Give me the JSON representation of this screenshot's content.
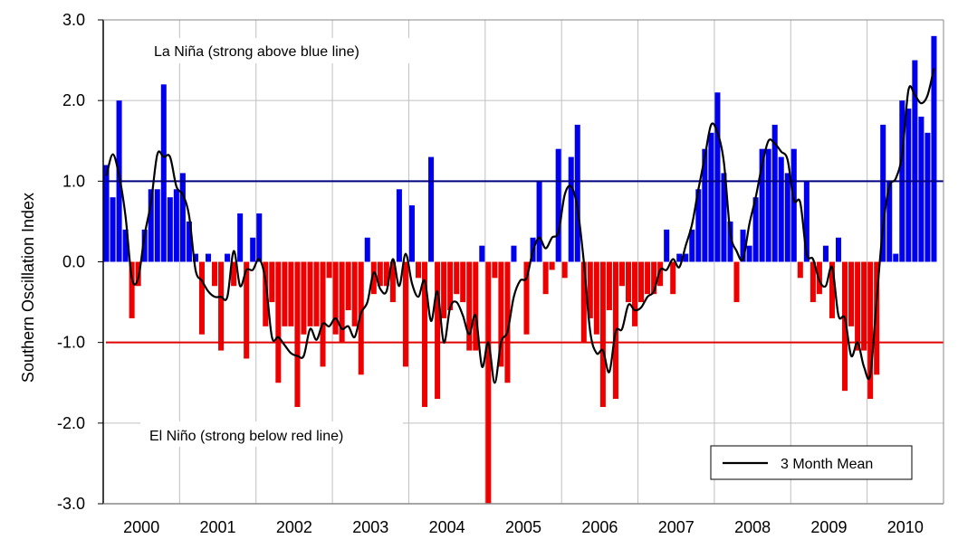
{
  "chart_data": {
    "type": "bar",
    "ylabel": "Southern Oscillation Index",
    "xlabel": "",
    "ylim": [
      -3.0,
      3.0
    ],
    "yticks": [
      "3.0",
      "2.0",
      "1.0",
      "0.0",
      "-1.0",
      "-2.0",
      "-3.0"
    ],
    "ytick_values": [
      3,
      2,
      1,
      0,
      -1,
      -2,
      -3
    ],
    "years": [
      "2000",
      "2001",
      "2002",
      "2003",
      "2004",
      "2005",
      "2006",
      "2007",
      "2008",
      "2009",
      "2010"
    ],
    "months_per_year": 12,
    "grid": "vertical at year boundaries, horizontal at 2.0 and -2.0",
    "reference_lines": [
      {
        "value": 1.0,
        "color": "#000080"
      },
      {
        "value": -1.0,
        "color": "#e00000"
      }
    ],
    "annotations": {
      "la_nina": "La Niña (strong above blue line)",
      "el_nino": "El Niño (strong below red line)"
    },
    "legend": {
      "label": "3 Month Mean",
      "placement": "bottom-right"
    },
    "colors": {
      "positive": "#0000ee",
      "negative": "#ee0000",
      "mean_line": "#000000"
    },
    "values": [
      1.2,
      0.8,
      2.0,
      0.4,
      -0.7,
      -0.3,
      0.4,
      0.9,
      0.9,
      2.2,
      0.8,
      0.9,
      1.1,
      0.5,
      0.1,
      -0.9,
      0.1,
      -0.3,
      -1.1,
      0.1,
      -0.3,
      0.6,
      -1.2,
      0.3,
      0.6,
      -0.8,
      -0.5,
      -1.5,
      -0.8,
      -0.8,
      -1.8,
      -0.9,
      -0.8,
      -0.8,
      -1.3,
      -0.2,
      -0.9,
      -1.0,
      -0.6,
      -0.8,
      -1.4,
      0.3,
      -0.4,
      -0.3,
      -0.3,
      -0.5,
      0.9,
      -1.3,
      0.7,
      -0.2,
      -1.8,
      1.3,
      -1.7,
      -0.7,
      -0.6,
      -0.4,
      -0.5,
      -1.1,
      -1.1,
      0.2,
      -3.0,
      -0.2,
      -1.3,
      -1.5,
      0.2,
      0.0,
      -0.9,
      0.3,
      1.0,
      -0.4,
      -0.1,
      1.4,
      -0.2,
      1.3,
      1.7,
      -1.0,
      -0.7,
      -0.9,
      -1.8,
      -0.6,
      -1.7,
      -0.3,
      -0.5,
      -0.8,
      -0.5,
      -0.4,
      -0.4,
      -0.3,
      0.4,
      -0.4,
      0.1,
      0.1,
      0.4,
      0.9,
      1.4,
      1.6,
      2.1,
      1.1,
      0.5,
      -0.5,
      0.4,
      0.2,
      0.8,
      1.4,
      1.4,
      1.7,
      1.3,
      1.1,
      1.4,
      -0.2,
      1.0,
      -0.5,
      -0.4,
      0.2,
      -0.7,
      0.3,
      -1.6,
      -0.8,
      -1.1,
      -1.1,
      -1.7,
      -1.4,
      1.7,
      1.0,
      0.1,
      2.0,
      1.9,
      2.5,
      1.8,
      1.6,
      2.8
    ]
  }
}
